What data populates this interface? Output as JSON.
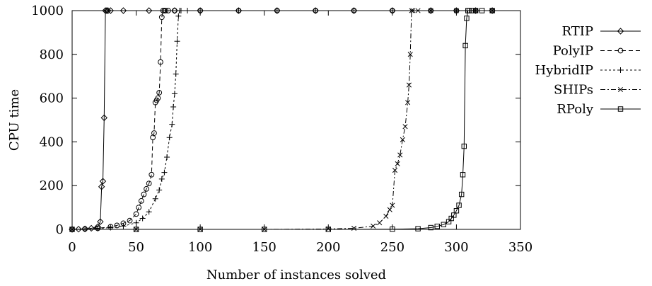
{
  "chart_data": {
    "type": "line",
    "xlabel": "Number of instances solved",
    "ylabel": "CPU time",
    "xlim": [
      0,
      350
    ],
    "ylim": [
      0,
      1000
    ],
    "xticks": [
      "0",
      "50",
      "100",
      "150",
      "200",
      "250",
      "300",
      "350"
    ],
    "yticks": [
      "0",
      "200",
      "400",
      "600",
      "800",
      "1000"
    ],
    "grid": false,
    "legend_position": "right",
    "series": [
      {
        "name": "RTIP",
        "marker": "diamond",
        "dash": "solid",
        "x": [
          0,
          5,
          10,
          15,
          20,
          22,
          23,
          24,
          25,
          26,
          27,
          28,
          30,
          40,
          60,
          80,
          100,
          130,
          160,
          190,
          220,
          250,
          280,
          300,
          315,
          328
        ],
        "y": [
          0,
          1,
          2,
          5,
          12,
          35,
          195,
          220,
          510,
          1000,
          1000,
          1000,
          1000,
          1000,
          1000,
          1000,
          1000,
          1000,
          1000,
          1000,
          1000,
          1000,
          1000,
          1000,
          1000,
          1000
        ]
      },
      {
        "name": "PolyIP",
        "marker": "circle",
        "dash": "dashed",
        "x": [
          0,
          10,
          20,
          30,
          35,
          40,
          45,
          50,
          52,
          54,
          56,
          58,
          60,
          62,
          63,
          64,
          65,
          66,
          67,
          68,
          69,
          70,
          71,
          72,
          73,
          75,
          80,
          100,
          130,
          160,
          190,
          220,
          250,
          280,
          300,
          315,
          328
        ],
        "y": [
          0,
          2,
          5,
          12,
          18,
          28,
          40,
          70,
          100,
          130,
          160,
          185,
          210,
          250,
          420,
          440,
          580,
          590,
          600,
          625,
          765,
          970,
          1000,
          1000,
          1000,
          1000,
          1000,
          1000,
          1000,
          1000,
          1000,
          1000,
          1000,
          1000,
          1000,
          1000,
          1000
        ]
      },
      {
        "name": "HybridIP",
        "marker": "plus",
        "dash": "dotted",
        "x": [
          0,
          10,
          20,
          30,
          40,
          50,
          55,
          60,
          65,
          68,
          70,
          72,
          74,
          76,
          78,
          79,
          80,
          81,
          82,
          83,
          84,
          85,
          90,
          100,
          130,
          160,
          190,
          220,
          250,
          280,
          300,
          315,
          328
        ],
        "y": [
          0,
          2,
          4,
          8,
          15,
          30,
          50,
          80,
          140,
          180,
          230,
          260,
          330,
          420,
          480,
          560,
          620,
          710,
          860,
          975,
          1000,
          1000,
          1000,
          1000,
          1000,
          1000,
          1000,
          1000,
          1000,
          1000,
          1000,
          1000,
          1000
        ]
      },
      {
        "name": "SHIPs",
        "marker": "cross",
        "dash": "dashdot",
        "x": [
          0,
          50,
          100,
          150,
          200,
          220,
          235,
          240,
          245,
          248,
          250,
          252,
          254,
          256,
          258,
          260,
          262,
          263,
          264,
          265,
          266,
          270,
          280,
          300,
          315,
          328
        ],
        "y": [
          0,
          0,
          0,
          0,
          2,
          5,
          15,
          30,
          60,
          90,
          110,
          270,
          300,
          340,
          410,
          470,
          580,
          660,
          800,
          1000,
          1000,
          1000,
          1000,
          1000,
          1000,
          1000
        ]
      },
      {
        "name": "RPoly",
        "marker": "square",
        "dash": "solid",
        "x": [
          0,
          50,
          100,
          150,
          200,
          250,
          270,
          280,
          285,
          290,
          294,
          296,
          298,
          300,
          302,
          304,
          305,
          306,
          307,
          308,
          309,
          310,
          312,
          315,
          320,
          328
        ],
        "y": [
          0,
          0,
          0,
          0,
          0,
          1,
          3,
          8,
          14,
          22,
          35,
          50,
          65,
          85,
          110,
          160,
          250,
          380,
          840,
          965,
          1000,
          1000,
          1000,
          1000,
          1000,
          1000
        ]
      }
    ]
  }
}
